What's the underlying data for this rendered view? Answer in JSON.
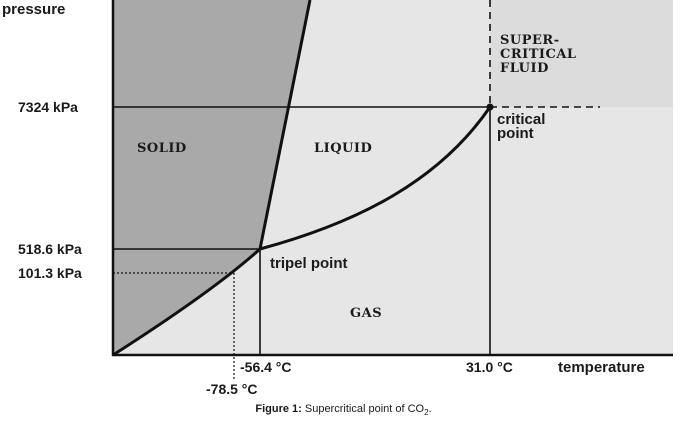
{
  "axes": {
    "y_title": "pressure",
    "x_title": "temperature"
  },
  "pressure_labels": {
    "critical": "7324 kPa",
    "triple": "518.6 kPa",
    "atmospheric": "101.3 kPa"
  },
  "temperature_labels": {
    "triple": "-56.4 °C",
    "sublimation": "-78.5 °C",
    "critical": "31.0 °C"
  },
  "regions": {
    "solid": "SOLID",
    "liquid": "LIQUID",
    "gas": "GAS",
    "supercritical_line1": "SUPER-",
    "supercritical_line2": "CRITICAL",
    "supercritical_line3": "FLUID"
  },
  "points": {
    "triple_label": "tripel point",
    "critical_line1": "critical",
    "critical_line2": "point"
  },
  "caption": {
    "label": "Figure 1:",
    "text_before_sub": "Supercritical point of CO",
    "subscript": "2",
    "text_after_sub": "."
  },
  "colors": {
    "solid_region": "#a9a9a9",
    "liquid_gas_region": "#e6e6e6",
    "supercritical_region": "#e1e1e1",
    "lines": "#111111"
  }
}
